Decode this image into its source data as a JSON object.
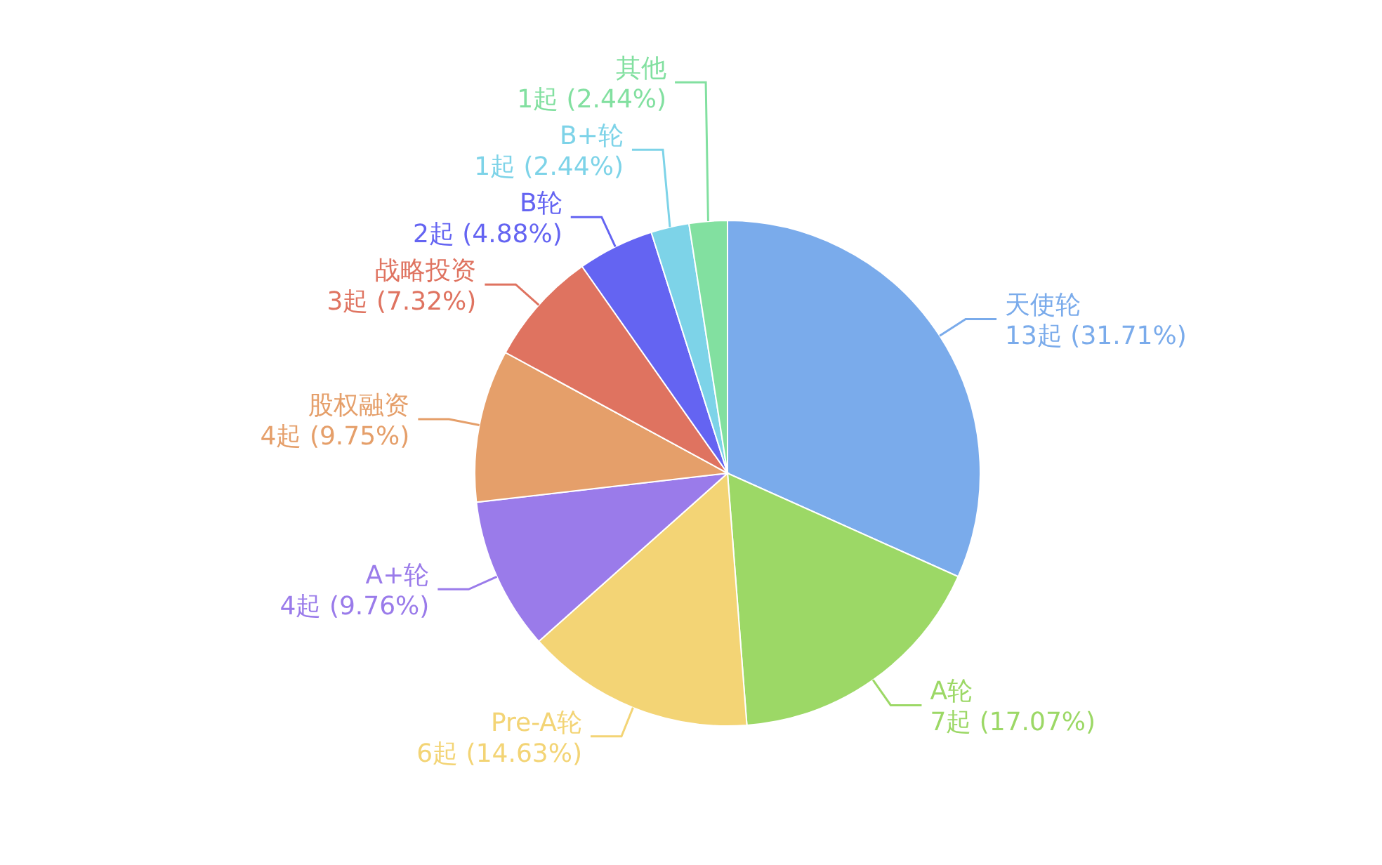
{
  "chart_data": {
    "type": "pie",
    "categories": [
      "天使轮",
      "A轮",
      "Pre-A轮",
      "A+轮",
      "股权融资",
      "战略投资",
      "B轮",
      "B+轮",
      "其他"
    ],
    "values": [
      13,
      7,
      6,
      4,
      4,
      3,
      2,
      1,
      1
    ],
    "value_labels": [
      "13起 (31.71%)",
      "7起 (17.07%)",
      "6起 (14.63%)",
      "4起 (9.76%)",
      "4起 (9.75%)",
      "3起 (7.32%)",
      "2起 (4.88%)",
      "1起 (2.44%)",
      "1起 (2.44%)"
    ],
    "colors": [
      "#7aabeb",
      "#9cd866",
      "#f3d475",
      "#9a7bea",
      "#e59f6a",
      "#df7360",
      "#6464f2",
      "#7dd3e8",
      "#82e0a0"
    ]
  }
}
